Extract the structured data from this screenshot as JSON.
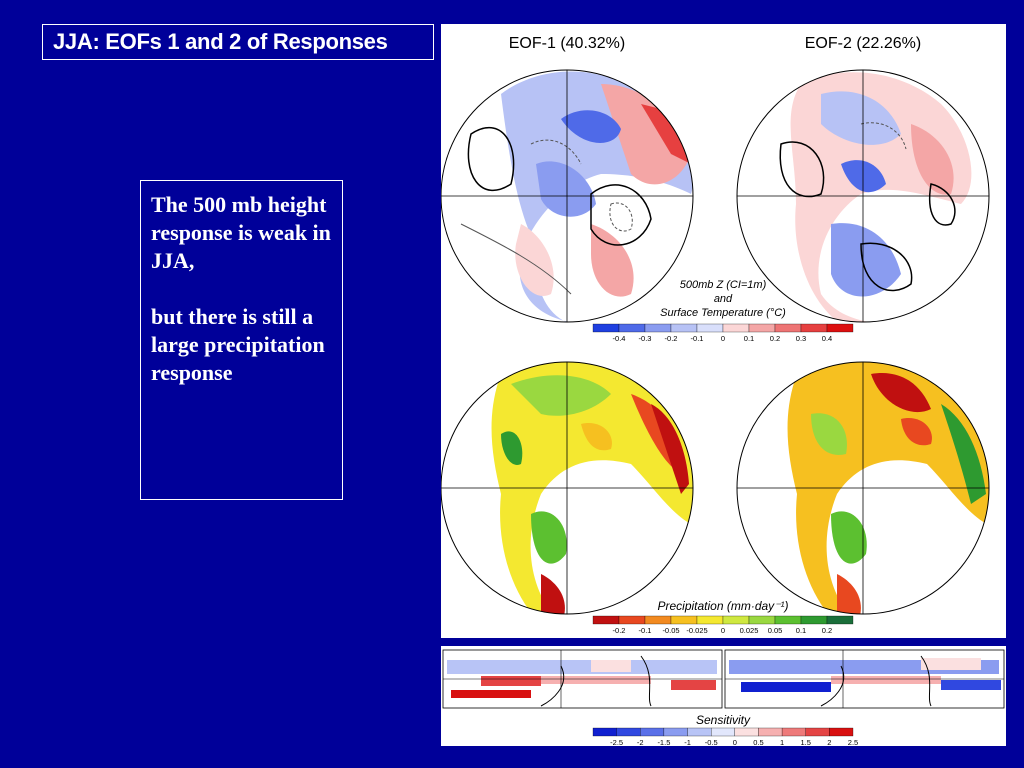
{
  "slide": {
    "title": "JJA: EOFs 1 and 2 of Responses",
    "note_line1": "The 500 mb height response is weak in JJA,",
    "note_line2": "but there is still a large precipitation response"
  },
  "figure_top": {
    "eof1_title": "EOF-1 (40.32%)",
    "eof2_title": "EOF-2 (22.26%)",
    "legend_label_line1": "500mb Z (CI=1m)",
    "legend_label_line2": "and",
    "legend_label_line3": "Surface Temperature (°C)",
    "colorbar_ticks": [
      "-0.4",
      "-0.3",
      "-0.2",
      "-0.1",
      "0",
      "0.1",
      "0.2",
      "0.3",
      "0.4"
    ],
    "colorbar_colors": [
      "#1f3fe0",
      "#4f6ae8",
      "#8a9cf0",
      "#b7c2f5",
      "#d9dffb",
      "#fbd6d6",
      "#f4a6a6",
      "#ee7474",
      "#e64040",
      "#dc1010"
    ]
  },
  "figure_precip": {
    "label": "Precipitation (mm·day⁻¹)",
    "colorbar_ticks": [
      "-0.2",
      "-0.1",
      "-0.05",
      "-0.025",
      "0",
      "0.025",
      "0.05",
      "0.1",
      "0.2"
    ],
    "colorbar_colors": [
      "#c01010",
      "#e84820",
      "#f28a20",
      "#f6c020",
      "#f4e830",
      "#cfe840",
      "#9ad840",
      "#5cc030",
      "#2e9a30",
      "#1a6e3a"
    ]
  },
  "figure_sensitivity": {
    "label": "Sensitivity",
    "colorbar_ticks": [
      "-2.5",
      "-2",
      "-1.5",
      "-1",
      "-0.5",
      "0",
      "0.5",
      "1",
      "1.5",
      "2",
      "2.5"
    ],
    "colorbar_colors": [
      "#1020d0",
      "#3048e0",
      "#5a70e8",
      "#8a9cf0",
      "#b8c4f6",
      "#e2e7fc",
      "#fbe0e0",
      "#f6b0b0",
      "#ee7a7a",
      "#e44444",
      "#d81010"
    ]
  }
}
